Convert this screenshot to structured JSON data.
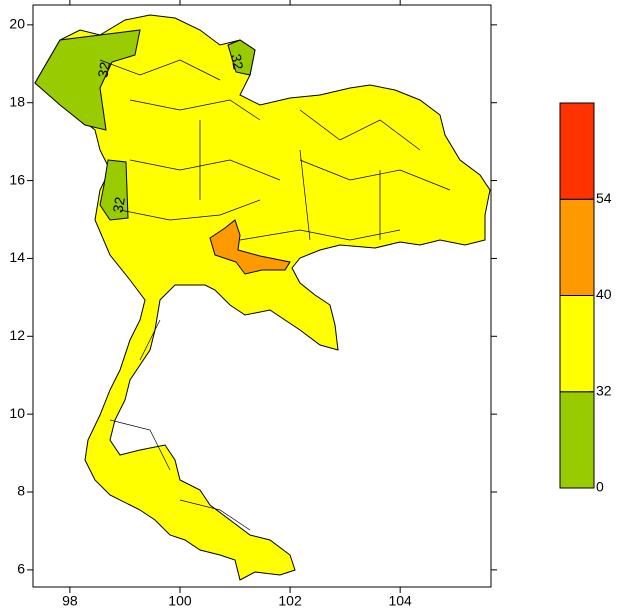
{
  "map": {
    "xlim": [
      97.33,
      105.65
    ],
    "ylim": [
      5.56,
      20.51
    ],
    "xticks": [
      98,
      100,
      102,
      104
    ],
    "yticks": [
      6,
      8,
      10,
      12,
      14,
      16,
      18,
      20
    ],
    "contour_labels": [
      "32",
      "32",
      "32"
    ],
    "colorbar": {
      "bins": [
        0,
        32,
        40,
        54
      ],
      "colors": [
        "#99cc00",
        "#ffff00",
        "#ff9900",
        "#ff3300"
      ]
    }
  }
}
